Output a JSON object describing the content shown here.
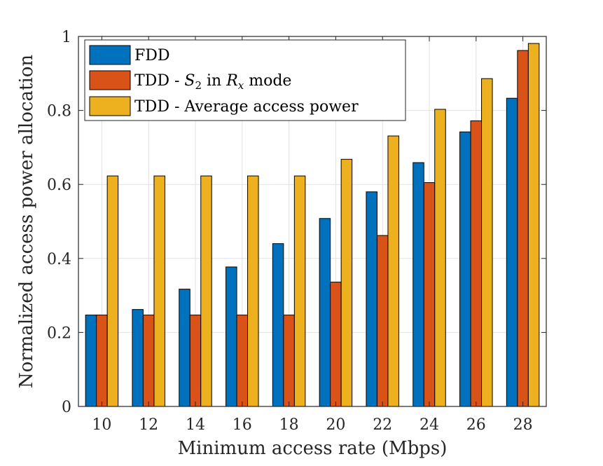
{
  "chart_data": {
    "type": "bar",
    "title": "",
    "xlabel": "Minimum access rate (Mbps)",
    "ylabel": "Normalized access power allocation",
    "categories": [
      "10",
      "12",
      "14",
      "16",
      "18",
      "20",
      "22",
      "24",
      "26",
      "28"
    ],
    "series": [
      {
        "name": "FDD",
        "legend": {
          "prefix": "FDD",
          "var": "",
          "sub": "",
          "mid": "",
          "var2": "",
          "sub2": "",
          "suffix": ""
        },
        "color": "#0072BD",
        "values": [
          0.247,
          0.262,
          0.317,
          0.377,
          0.44,
          0.508,
          0.58,
          0.659,
          0.742,
          0.833
        ]
      },
      {
        "name": "TDD - S2 in Rx mode",
        "legend": {
          "prefix": "TDD - ",
          "var": "S",
          "sub": "2",
          "mid": " in ",
          "var2": "R",
          "sub2": "x",
          "suffix": " mode"
        },
        "color": "#D95319",
        "values": [
          0.247,
          0.247,
          0.247,
          0.247,
          0.247,
          0.336,
          0.462,
          0.605,
          0.772,
          0.962
        ]
      },
      {
        "name": "TDD - Average access power",
        "legend": {
          "prefix": "TDD - Average access power",
          "var": "",
          "sub": "",
          "mid": "",
          "var2": "",
          "sub2": "",
          "suffix": ""
        },
        "color": "#EDB120",
        "values": [
          0.623,
          0.623,
          0.623,
          0.623,
          0.623,
          0.668,
          0.731,
          0.803,
          0.886,
          0.981
        ]
      }
    ],
    "ylim": [
      0,
      1
    ],
    "yticks": [
      "0",
      "0.2",
      "0.4",
      "0.6",
      "0.8",
      "1"
    ],
    "grid": true,
    "legend_position": "top-left"
  }
}
